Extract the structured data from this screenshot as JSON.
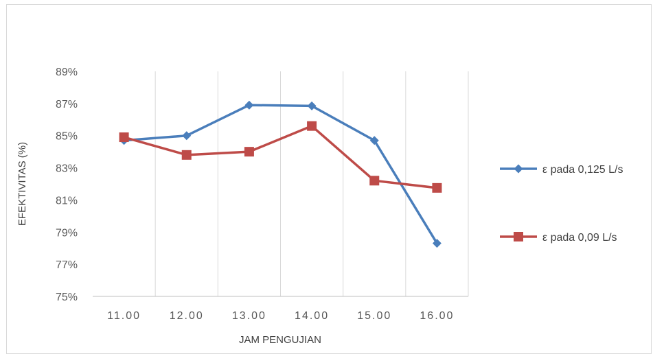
{
  "chart_data": {
    "type": "line",
    "title": "",
    "xlabel": "JAM PENGUJIAN",
    "ylabel": "EFEKTIVITAS (%)",
    "categories": [
      "11.00",
      "12.00",
      "13.00",
      "14.00",
      "15.00",
      "16.00"
    ],
    "yticks": [
      "75%",
      "77%",
      "79%",
      "81%",
      "83%",
      "85%",
      "87%",
      "89%"
    ],
    "ylim": [
      75,
      89
    ],
    "grid": "vertical",
    "legend_position": "right",
    "series": [
      {
        "name": "ε pada 0,125 L/s",
        "color": "#4a7ebb",
        "marker": "diamond",
        "values": [
          84.7,
          85.0,
          86.9,
          86.85,
          84.7,
          78.3
        ]
      },
      {
        "name": "ε pada 0,09 L/s",
        "color": "#be4b48",
        "marker": "square",
        "values": [
          84.9,
          83.8,
          84.0,
          85.6,
          82.2,
          81.75
        ]
      }
    ]
  }
}
